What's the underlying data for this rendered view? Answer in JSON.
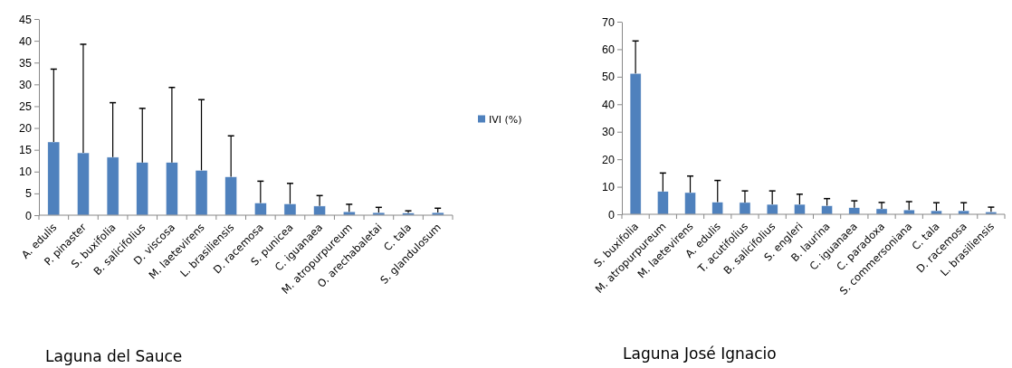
{
  "chart_data": [
    {
      "type": "bar",
      "title": "Laguna del Sauce",
      "categories": [
        "A. edulis",
        "P. pinaster",
        "S. buxifolia",
        "B. salicifolius",
        "D. viscosa",
        "M. laetevirens",
        "L. brasiliensis",
        "D. racemosa",
        "S. punicea",
        "C. iguanaea",
        "M. atropurpureum",
        "O. arechabaletai",
        "C. tala",
        "S. glandulosum"
      ],
      "series": [
        {
          "name": "IVI (%)",
          "color": "#4f81bd",
          "values": [
            16.8,
            14.3,
            13.3,
            12.1,
            12.1,
            10.3,
            8.8,
            2.8,
            2.6,
            2.1,
            0.8,
            0.6,
            0.5,
            0.6
          ],
          "errors": [
            [
              16.8,
              33.5
            ],
            [
              14.3,
              39.2
            ],
            [
              13.3,
              25.8
            ],
            [
              12.1,
              24.5
            ],
            [
              12.1,
              29.3
            ],
            [
              10.3,
              26.5
            ],
            [
              8.8,
              18.2
            ],
            [
              2.8,
              7.8
            ],
            [
              2.6,
              7.3
            ],
            [
              2.1,
              4.5
            ],
            [
              0.8,
              2.5
            ],
            [
              0.6,
              1.8
            ],
            [
              0.5,
              1.0
            ],
            [
              0.6,
              1.6
            ]
          ]
        }
      ],
      "ylim": [
        0,
        45
      ],
      "yticks": [
        0,
        5,
        10,
        15,
        20,
        25,
        30,
        35,
        40,
        45
      ],
      "legend": "right"
    },
    {
      "type": "bar",
      "title": "Laguna José Ignacio",
      "categories": [
        "S. buxifolia",
        "M. atropurpureum",
        "M. laetevirens",
        "A. edulis",
        "T. acutifolius",
        "B. salicifolius",
        "S. engleri",
        "B. laurina",
        "C. iguanaea",
        "C. paradoxa",
        "S. commersoniana",
        "C. tala",
        "D. racemosa",
        "L. brasiliensis"
      ],
      "series": [
        {
          "color": "#4f81bd",
          "values": [
            51.2,
            8.3,
            7.9,
            4.4,
            4.3,
            3.6,
            3.6,
            3.1,
            2.4,
            2.0,
            1.6,
            1.3,
            1.3,
            0.9
          ],
          "errors": [
            [
              51.2,
              63
            ],
            [
              8.3,
              15
            ],
            [
              7.9,
              13.9
            ],
            [
              4.4,
              12.3
            ],
            [
              4.3,
              8.5
            ],
            [
              3.6,
              8.5
            ],
            [
              3.6,
              7.3
            ],
            [
              3.1,
              5.7
            ],
            [
              2.4,
              4.9
            ],
            [
              2.0,
              4.3
            ],
            [
              1.6,
              4.6
            ],
            [
              1.3,
              4.2
            ],
            [
              1.3,
              4.2
            ],
            [
              0.9,
              2.6
            ]
          ]
        }
      ],
      "ylim": [
        0,
        70
      ],
      "yticks": [
        0,
        10,
        20,
        30,
        40,
        50,
        60,
        70
      ]
    }
  ]
}
